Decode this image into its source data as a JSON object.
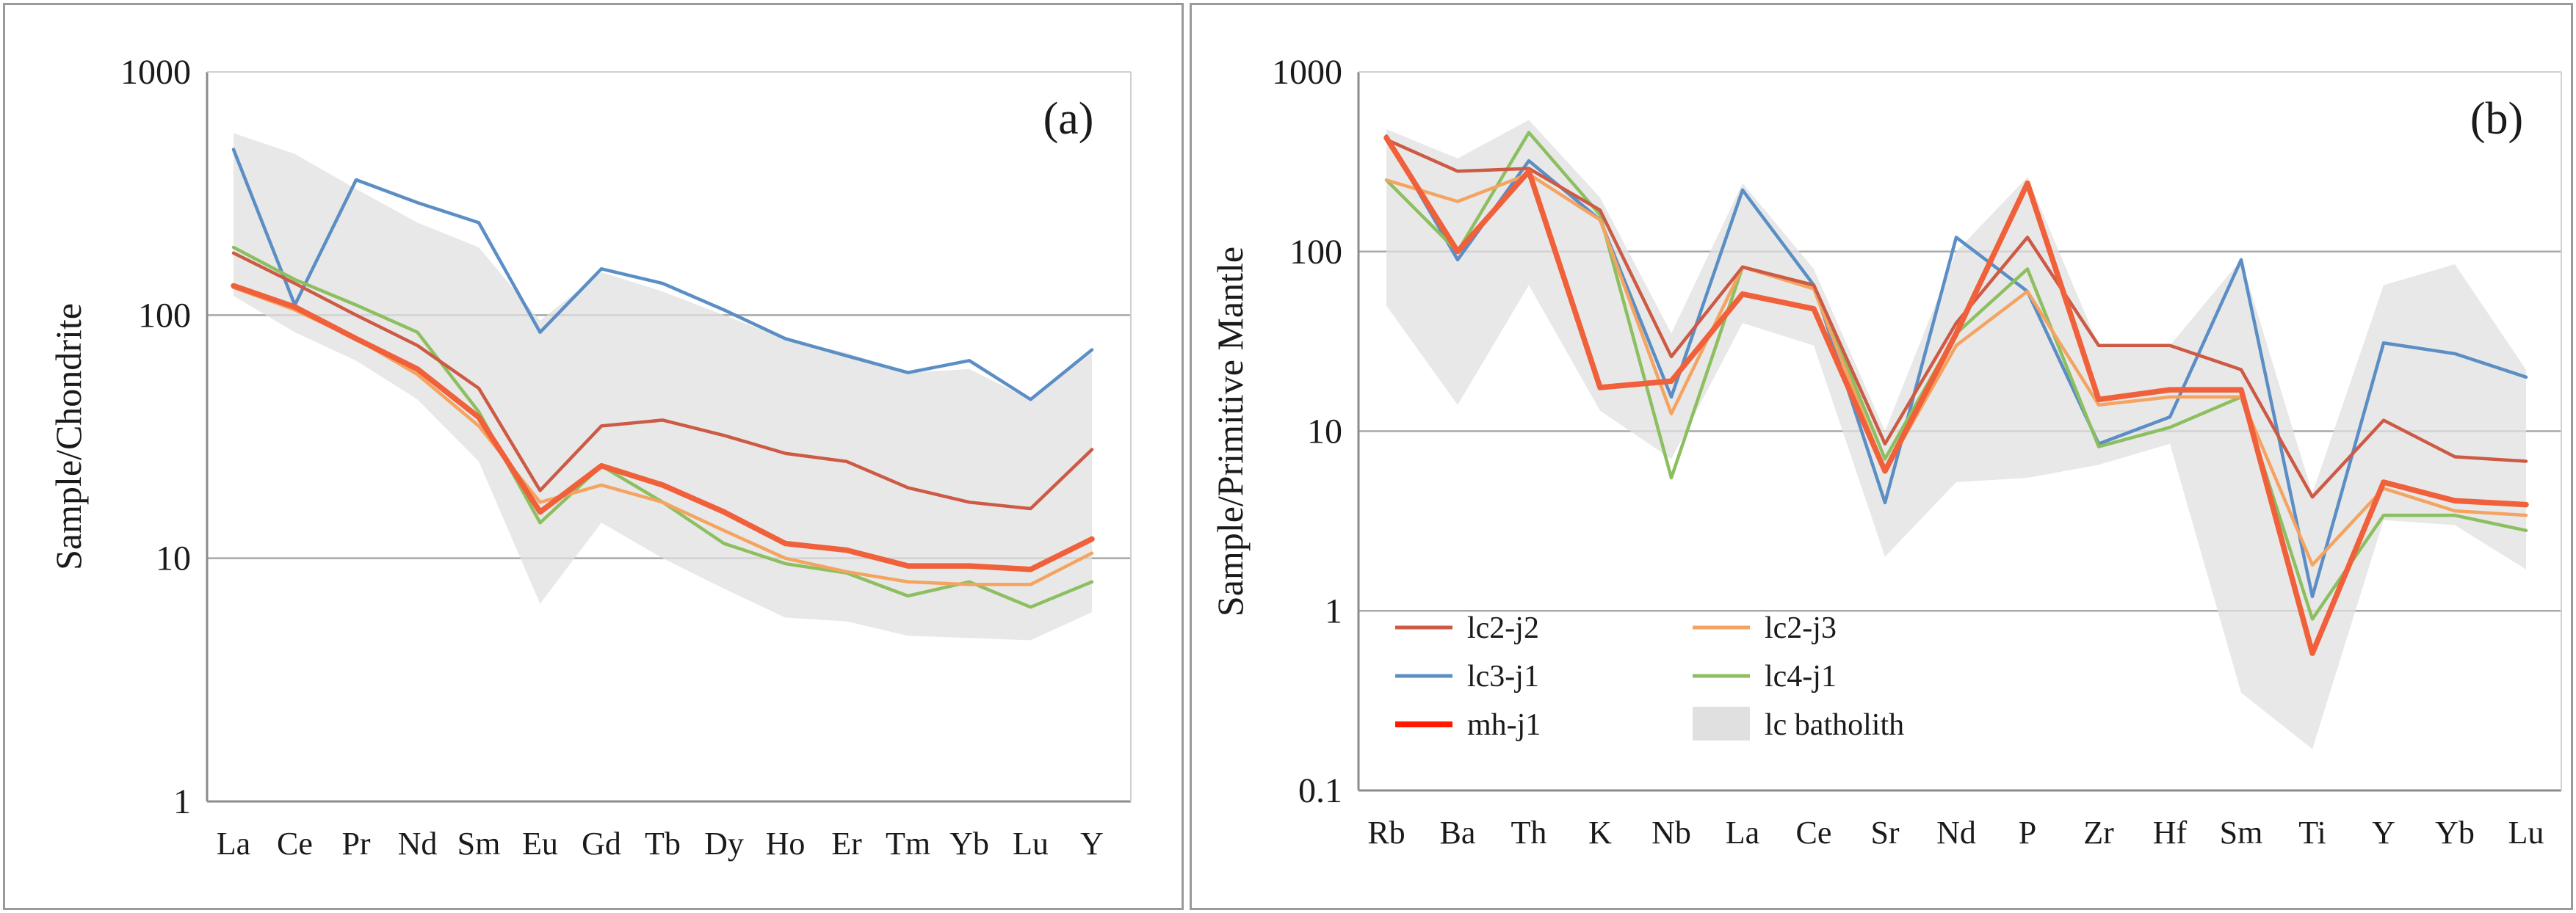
{
  "colors": {
    "lc2-j2": "#cd5a45",
    "lc2-j3": "#f4a460",
    "lc3-j1": "#5b8ec4",
    "lc4-j1": "#8cbf5f",
    "mh-j1": "#f0603a",
    "mh-j1-legend": "#ff1a00",
    "batholith": "#e0e0e0"
  },
  "chart_data": [
    {
      "type": "line",
      "panel_label": "(a)",
      "ylabel": "Sample/Chondrite",
      "yscale": "log",
      "ylim": [
        1,
        1000
      ],
      "yticks": [
        "1",
        "10",
        "100",
        "1000"
      ],
      "grid": "horizontal at 10 and 100",
      "categories": [
        "La",
        "Ce",
        "Pr",
        "Nd",
        "Sm",
        "Eu",
        "Gd",
        "Tb",
        "Dy",
        "Ho",
        "Er",
        "Tm",
        "Yb",
        "Lu",
        "Y"
      ],
      "band": {
        "name": "lc batholith",
        "upper": [
          560,
          460,
          330,
          240,
          190,
          95,
          150,
          125,
          100,
          80,
          70,
          58,
          60,
          45,
          70
        ],
        "lower": [
          120,
          85,
          65,
          45,
          25,
          6.5,
          14,
          10,
          7.5,
          5.7,
          5.5,
          4.8,
          4.7,
          4.6,
          6
        ]
      },
      "series": [
        {
          "key": "lc2-j2",
          "values": [
            180,
            135,
            100,
            75,
            50,
            19,
            35,
            37,
            32,
            27,
            25,
            19.5,
            17,
            16,
            28
          ]
        },
        {
          "key": "lc2-j3",
          "values": [
            130,
            105,
            80,
            57,
            35,
            17,
            20,
            17,
            13,
            10,
            8.8,
            8,
            7.8,
            7.8,
            10.5
          ]
        },
        {
          "key": "lc3-j1",
          "values": [
            480,
            110,
            360,
            290,
            240,
            85,
            155,
            135,
            105,
            80,
            68,
            58,
            65,
            45,
            72
          ]
        },
        {
          "key": "lc4-j1",
          "values": [
            190,
            140,
            110,
            85,
            40,
            14,
            24,
            17,
            11.5,
            9.5,
            8.7,
            7,
            8,
            6.3,
            8
          ]
        },
        {
          "key": "mh-j1",
          "values": [
            132,
            108,
            80,
            60,
            38,
            15.5,
            24,
            20,
            15.5,
            11.5,
            10.8,
            9.3,
            9.3,
            9,
            12
          ]
        }
      ]
    },
    {
      "type": "line",
      "panel_label": "(b)",
      "ylabel": "Sample/Primitive Mantle",
      "yscale": "log",
      "ylim": [
        0.1,
        1000
      ],
      "yticks": [
        "0.1",
        "1",
        "10",
        "100",
        "1000"
      ],
      "grid": "horizontal at 1, 10 and 100",
      "categories": [
        "Rb",
        "Ba",
        "Th",
        "K",
        "Nb",
        "La",
        "Ce",
        "Sr",
        "Nd",
        "P",
        "Zr",
        "Hf",
        "Sm",
        "Ti",
        "Y",
        "Yb",
        "Lu"
      ],
      "band": {
        "name": "lc batholith",
        "upper": [
          480,
          330,
          540,
          200,
          35,
          240,
          80,
          10,
          100,
          260,
          30,
          30,
          90,
          4.5,
          65,
          85,
          22
        ],
        "lower": [
          50,
          14,
          65,
          13,
          7,
          40,
          30,
          2,
          5.2,
          5.5,
          6.5,
          8.5,
          0.35,
          0.17,
          3.2,
          3,
          1.7
        ]
      },
      "series": [
        {
          "key": "lc2-j2",
          "values": [
            420,
            280,
            290,
            170,
            26,
            82,
            65,
            8.5,
            40,
            120,
            30,
            30,
            22,
            4.3,
            11.5,
            7.2,
            6.8
          ]
        },
        {
          "key": "lc2-j3",
          "values": [
            250,
            190,
            270,
            150,
            12.5,
            82,
            62,
            6,
            30,
            60,
            14,
            15.5,
            15.5,
            1.8,
            4.8,
            3.6,
            3.4
          ]
        },
        {
          "key": "lc3-j1",
          "values": [
            440,
            90,
            320,
            150,
            15.5,
            220,
            65,
            4,
            120,
            60,
            8.5,
            12,
            90,
            1.2,
            31,
            27,
            20
          ]
        },
        {
          "key": "lc4-j1",
          "values": [
            250,
            100,
            460,
            160,
            5.5,
            82,
            65,
            7,
            35,
            80,
            8.2,
            10.5,
            15.5,
            0.9,
            3.4,
            3.4,
            2.8
          ]
        },
        {
          "key": "mh-j1",
          "values": [
            430,
            100,
            280,
            17.5,
            19,
            58,
            48,
            6,
            35,
            240,
            15,
            17,
            17,
            0.58,
            5.2,
            4.1,
            3.9
          ]
        }
      ],
      "legend": {
        "placement": "bottom-left",
        "entries": [
          {
            "key": "lc2-j2",
            "label": "lc2-j2"
          },
          {
            "key": "lc2-j3",
            "label": "lc2-j3"
          },
          {
            "key": "lc3-j1",
            "label": "lc3-j1"
          },
          {
            "key": "lc4-j1",
            "label": "lc4-j1"
          },
          {
            "key": "mh-j1",
            "label": "mh-j1"
          },
          {
            "key": "batholith",
            "label": "lc batholith"
          }
        ]
      }
    }
  ]
}
